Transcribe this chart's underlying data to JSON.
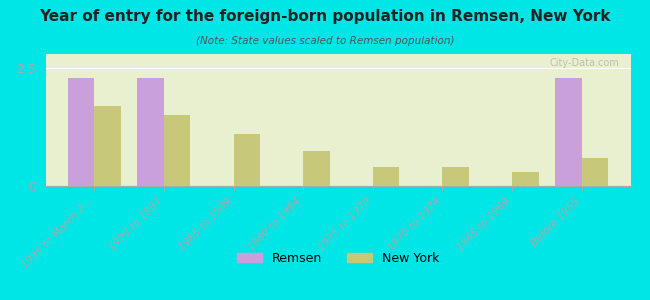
{
  "title": "Year of entry for the foreign-born population in Remsen, New York",
  "subtitle": "(Note: State values scaled to Remsen population)",
  "categories": [
    "1995 to March 2...",
    "1990 to 1994",
    "1985 to 1989",
    "1980 to 1984",
    "1975 to 1979",
    "1970 to 1974",
    "1965 to 1969",
    "Before 1965"
  ],
  "remsen_values": [
    2.3,
    2.3,
    0.0,
    0.0,
    0.0,
    0.0,
    0.0,
    2.3
  ],
  "newyork_values": [
    1.7,
    1.5,
    1.1,
    0.75,
    0.4,
    0.4,
    0.3,
    0.6
  ],
  "remsen_color": "#c9a0dc",
  "newyork_color": "#c8c87a",
  "background_color": "#00e5e5",
  "plot_bg": "#e8f0d0",
  "ylim": [
    0,
    2.8
  ],
  "yticks": [
    0,
    2.5
  ],
  "bar_width": 0.38,
  "watermark": "City-Data.com",
  "legend_remsen": "Remsen",
  "legend_newyork": "New York"
}
